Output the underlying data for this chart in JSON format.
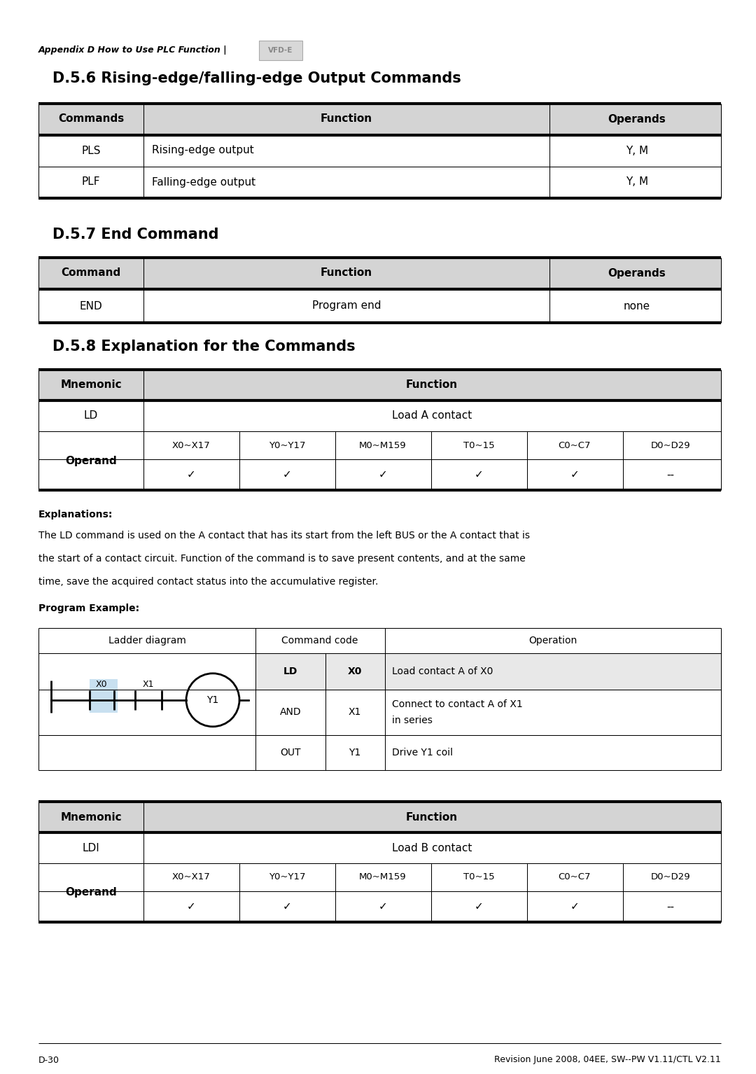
{
  "page_header": "Appendix D How to Use PLC Function |",
  "page_footer_left": "D-30",
  "page_footer_right": "Revision June 2008, 04EE, SW--PW V1.11/CTL V2.11",
  "section1_title": "D.5.6 Rising-edge/falling-edge Output Commands",
  "section1_header": [
    "Commands",
    "Function",
    "Operands"
  ],
  "section1_rows": [
    [
      "PLS",
      "Rising-edge output",
      "Y, M"
    ],
    [
      "PLF",
      "Falling-edge output",
      "Y, M"
    ]
  ],
  "section2_title": "D.5.7 End Command",
  "section2_header": [
    "Command",
    "Function",
    "Operands"
  ],
  "section2_rows": [
    [
      "END",
      "Program end",
      "none"
    ]
  ],
  "section3_title": "D.5.8 Explanation for the Commands",
  "section3_row1": [
    "LD",
    "Load A contact"
  ],
  "section3_operand_cols": [
    "X0~X17",
    "Y0~Y17",
    "M0~M159",
    "T0~15",
    "C0~C7",
    "D0~D29"
  ],
  "section3_operand_vals": [
    "✓",
    "✓",
    "✓",
    "✓",
    "✓",
    "--"
  ],
  "explanations_body": "The LD command is used on the A contact that has its start from the left BUS or the A contact that is\nthe start of a contact circuit. Function of the command is to save present contents, and at the same\ntime, save the acquired contact status into the accumulative register.",
  "ladder_rows": [
    [
      "LD",
      "X0",
      "Load contact A of X0"
    ],
    [
      "AND",
      "X1",
      "Connect to contact A of X1\nin series"
    ],
    [
      "OUT",
      "Y1",
      "Drive Y1 coil"
    ]
  ],
  "section4_row1": [
    "LDI",
    "Load B contact"
  ],
  "section4_operand_cols": [
    "X0~X17",
    "Y0~Y17",
    "M0~M159",
    "T0~15",
    "C0~C7",
    "D0~D29"
  ],
  "section4_operand_vals": [
    "✓",
    "✓",
    "✓",
    "✓",
    "✓",
    "--"
  ],
  "bg_color": "#ffffff",
  "header_bg": "#d4d4d4",
  "row1_bg": "#e8e8e8",
  "cell_bg": "#ffffff",
  "border_color": "#000000",
  "thick_border": 3.0,
  "thin_border": 0.75
}
